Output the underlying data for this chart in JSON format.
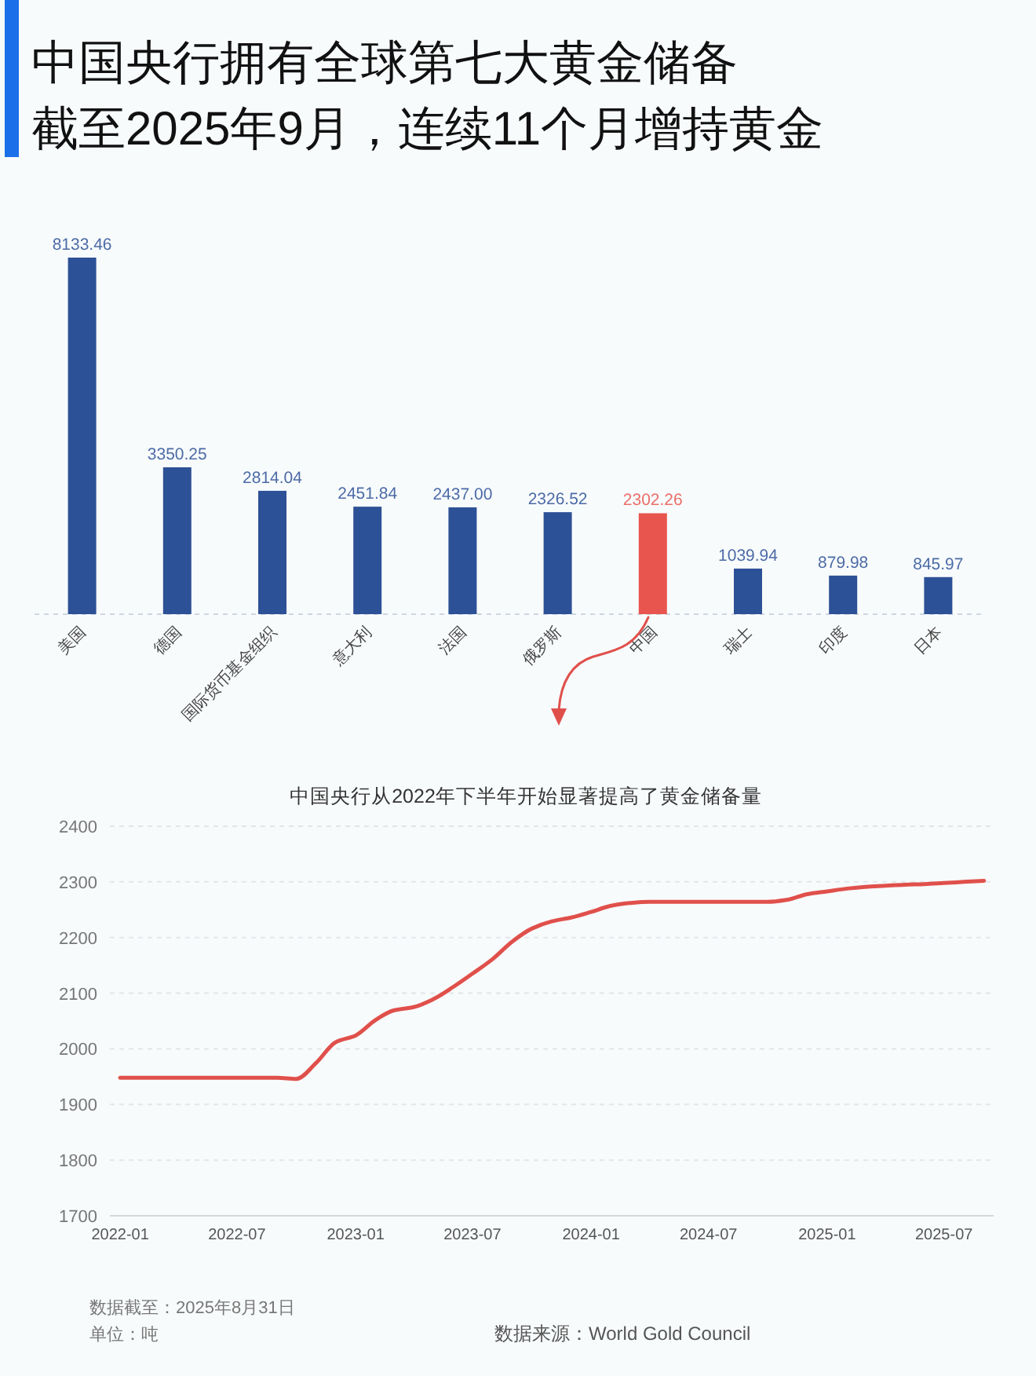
{
  "chart_data": [
    {
      "type": "bar",
      "title": "中国央行拥有全球第七大黄金储备",
      "subtitle": "截至2025年9月，连续11个月增持黄金",
      "categories": [
        "美国",
        "德国",
        "国际货币基金组织",
        "意大利",
        "法国",
        "俄罗斯",
        "中国",
        "瑞士",
        "印度",
        "日本"
      ],
      "values": [
        8133.46,
        3350.25,
        2814.04,
        2451.84,
        2437.0,
        2326.52,
        2302.26,
        1039.94,
        879.98,
        845.97
      ],
      "value_labels": [
        "8133.46",
        "3350.25",
        "2814.04",
        "2451.84",
        "2437.00",
        "2326.52",
        "2302.26",
        "1039.94",
        "879.98",
        "845.97"
      ],
      "colors": [
        "#2d5196",
        "#2d5196",
        "#2d5196",
        "#2d5196",
        "#2d5196",
        "#2d5196",
        "#e8554e",
        "#2d5196",
        "#2d5196",
        "#2d5196"
      ],
      "tick_labels": "x"
    },
    {
      "type": "line",
      "title": "中国央行从2022年下半年开始显著提高了黄金储备量",
      "x": [
        "2022-01",
        "2022-02",
        "2022-03",
        "2022-04",
        "2022-05",
        "2022-06",
        "2022-07",
        "2022-08",
        "2022-09",
        "2022-10",
        "2022-11",
        "2022-12",
        "2023-01",
        "2023-02",
        "2023-03",
        "2023-04",
        "2023-05",
        "2023-06",
        "2023-07",
        "2023-08",
        "2023-09",
        "2023-10",
        "2023-11",
        "2023-12",
        "2024-01",
        "2024-02",
        "2024-03",
        "2024-04",
        "2024-05",
        "2024-06",
        "2024-07",
        "2024-08",
        "2024-09",
        "2024-10",
        "2024-11",
        "2024-12",
        "2025-01",
        "2025-02",
        "2025-03",
        "2025-04",
        "2025-05",
        "2025-06",
        "2025-07",
        "2025-08",
        "2025-09"
      ],
      "series": [
        {
          "color": "#e0504b",
          "values": [
            1948,
            1948,
            1948,
            1948,
            1948,
            1948,
            1948,
            1948,
            1948,
            1946,
            1975,
            2012,
            2024,
            2052,
            2069,
            2075,
            2089,
            2111,
            2135,
            2161,
            2193,
            2216,
            2229,
            2236,
            2246,
            2257,
            2262,
            2264,
            2264,
            2264,
            2264,
            2264,
            2264,
            2264,
            2268,
            2278,
            2283,
            2288,
            2291,
            2293,
            2295,
            2296,
            2298,
            2300,
            2302
          ]
        }
      ],
      "xlim": [
        "2021-12-16",
        "2025-09-16"
      ],
      "xticks": [
        "2022-01",
        "2022-07",
        "2023-01",
        "2023-07",
        "2024-01",
        "2024-07",
        "2025-01",
        "2025-07"
      ],
      "ylim": [
        1700,
        2400
      ],
      "yticks": [
        1700,
        1800,
        1900,
        2000,
        2100,
        2200,
        2300,
        2400
      ],
      "grid": "y",
      "line_style": "solid",
      "annotations": [
        "数据截至：2025年8月31日",
        "单位：吨",
        "数据来源：World Gold Council"
      ]
    }
  ]
}
